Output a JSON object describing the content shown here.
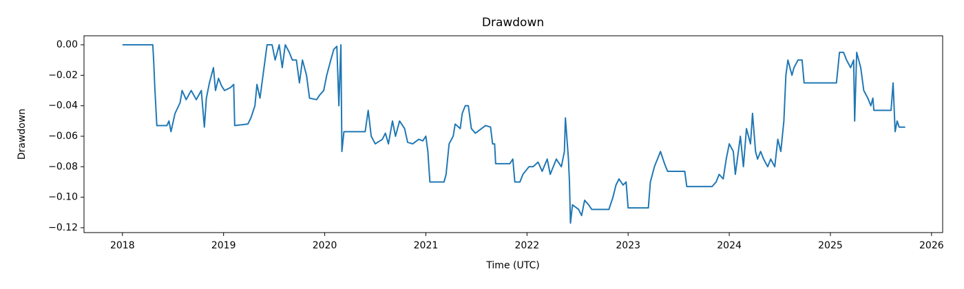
{
  "chart_data": {
    "type": "line",
    "title": "Drawdown",
    "xlabel": "Time (UTC)",
    "ylabel": "Drawdown",
    "xlim": [
      2017.62,
      2026.11
    ],
    "ylim": [
      -0.1232,
      0.0059
    ],
    "xticks": [
      2018,
      2019,
      2020,
      2021,
      2022,
      2023,
      2024,
      2025,
      2026
    ],
    "yticks": [
      {
        "value": 0,
        "label": "0.00"
      },
      {
        "value": -0.02,
        "label": "−0.02"
      },
      {
        "value": -0.04,
        "label": "−0.04"
      },
      {
        "value": -0.06,
        "label": "−0.06"
      },
      {
        "value": -0.08,
        "label": "−0.08"
      },
      {
        "value": -0.1,
        "label": "−0.10"
      },
      {
        "value": -0.12,
        "label": "−0.12"
      }
    ],
    "series": [
      {
        "color": "#1f77b4",
        "x": [
          2018.0,
          2018.3,
          2018.31,
          2018.32,
          2018.34,
          2018.44,
          2018.46,
          2018.48,
          2018.52,
          2018.57,
          2018.59,
          2018.63,
          2018.68,
          2018.73,
          2018.78,
          2018.81,
          2018.83,
          2018.86,
          2018.9,
          2018.92,
          2018.95,
          2018.98,
          2019.01,
          2019.07,
          2019.1,
          2019.11,
          2019.24,
          2019.27,
          2019.31,
          2019.33,
          2019.36,
          2019.39,
          2019.41,
          2019.43,
          2019.48,
          2019.51,
          2019.55,
          2019.58,
          2019.61,
          2019.65,
          2019.68,
          2019.72,
          2019.75,
          2019.78,
          2019.82,
          2019.85,
          2019.92,
          2019.95,
          2019.99,
          2020.02,
          2020.06,
          2020.09,
          2020.12,
          2020.14,
          2020.16,
          2020.17,
          2020.19,
          2020.4,
          2020.43,
          2020.46,
          2020.5,
          2020.57,
          2020.6,
          2020.63,
          2020.67,
          2020.7,
          2020.74,
          2020.79,
          2020.82,
          2020.87,
          2020.93,
          2020.97,
          2021.0,
          2021.02,
          2021.04,
          2021.18,
          2021.2,
          2021.23,
          2021.27,
          2021.29,
          2021.34,
          2021.36,
          2021.39,
          2021.42,
          2021.45,
          2021.49,
          2021.55,
          2021.59,
          2021.64,
          2021.66,
          2021.68,
          2021.69,
          2021.83,
          2021.86,
          2021.88,
          2021.93,
          2021.96,
          2022.02,
          2022.06,
          2022.11,
          2022.15,
          2022.2,
          2022.23,
          2022.29,
          2022.34,
          2022.37,
          2022.38,
          2022.41,
          2022.42,
          2022.43,
          2022.45,
          2022.51,
          2022.54,
          2022.57,
          2022.61,
          2022.64,
          2022.81,
          2022.85,
          2022.88,
          2022.91,
          2022.95,
          2022.98,
          2023.0,
          2023.2,
          2023.22,
          2023.26,
          2023.29,
          2023.32,
          2023.36,
          2023.39,
          2023.56,
          2023.58,
          2023.83,
          2023.87,
          2023.9,
          2023.94,
          2023.97,
          2024.0,
          2024.04,
          2024.06,
          2024.09,
          2024.11,
          2024.14,
          2024.17,
          2024.21,
          2024.23,
          2024.26,
          2024.28,
          2024.31,
          2024.34,
          2024.38,
          2024.41,
          2024.45,
          2024.48,
          2024.51,
          2024.54,
          2024.56,
          2024.58,
          2024.62,
          2024.64,
          2024.68,
          2024.72,
          2024.74,
          2025.06,
          2025.09,
          2025.13,
          2025.16,
          2025.2,
          2025.23,
          2025.24,
          2025.26,
          2025.3,
          2025.33,
          2025.37,
          2025.4,
          2025.42,
          2025.43,
          2025.6,
          2025.62,
          2025.64,
          2025.66,
          2025.68,
          2025.74
        ],
        "values": [
          0,
          0,
          -0.012,
          -0.028,
          -0.053,
          -0.053,
          -0.05,
          -0.057,
          -0.045,
          -0.038,
          -0.03,
          -0.036,
          -0.03,
          -0.036,
          -0.03,
          -0.054,
          -0.035,
          -0.025,
          -0.015,
          -0.03,
          -0.022,
          -0.027,
          -0.03,
          -0.028,
          -0.026,
          -0.053,
          -0.052,
          -0.048,
          -0.04,
          -0.026,
          -0.035,
          -0.02,
          -0.01,
          0,
          0,
          -0.01,
          0,
          -0.015,
          0,
          -0.005,
          -0.01,
          -0.01,
          -0.025,
          -0.01,
          -0.02,
          -0.035,
          -0.036,
          -0.033,
          -0.03,
          -0.02,
          -0.01,
          -0.003,
          -0.001,
          -0.04,
          0,
          -0.07,
          -0.057,
          -0.057,
          -0.043,
          -0.06,
          -0.065,
          -0.062,
          -0.058,
          -0.065,
          -0.05,
          -0.06,
          -0.05,
          -0.055,
          -0.064,
          -0.065,
          -0.062,
          -0.063,
          -0.06,
          -0.07,
          -0.09,
          -0.09,
          -0.085,
          -0.065,
          -0.06,
          -0.052,
          -0.055,
          -0.045,
          -0.04,
          -0.04,
          -0.055,
          -0.058,
          -0.055,
          -0.053,
          -0.054,
          -0.065,
          -0.065,
          -0.078,
          -0.078,
          -0.075,
          -0.09,
          -0.09,
          -0.085,
          -0.08,
          -0.08,
          -0.077,
          -0.083,
          -0.075,
          -0.085,
          -0.075,
          -0.08,
          -0.07,
          -0.048,
          -0.075,
          -0.09,
          -0.117,
          -0.105,
          -0.108,
          -0.112,
          -0.102,
          -0.105,
          -0.108,
          -0.108,
          -0.1,
          -0.092,
          -0.088,
          -0.092,
          -0.09,
          -0.107,
          -0.107,
          -0.09,
          -0.08,
          -0.075,
          -0.07,
          -0.078,
          -0.083,
          -0.083,
          -0.093,
          -0.093,
          -0.09,
          -0.085,
          -0.088,
          -0.075,
          -0.065,
          -0.07,
          -0.085,
          -0.07,
          -0.06,
          -0.08,
          -0.055,
          -0.065,
          -0.045,
          -0.07,
          -0.075,
          -0.07,
          -0.075,
          -0.08,
          -0.075,
          -0.08,
          -0.062,
          -0.07,
          -0.05,
          -0.02,
          -0.01,
          -0.02,
          -0.015,
          -0.01,
          -0.01,
          -0.025,
          -0.025,
          -0.005,
          -0.005,
          -0.01,
          -0.015,
          -0.01,
          -0.05,
          -0.005,
          -0.015,
          -0.03,
          -0.035,
          -0.04,
          -0.035,
          -0.043,
          -0.043,
          -0.025,
          -0.057,
          -0.05,
          -0.054,
          -0.054
        ]
      }
    ]
  }
}
